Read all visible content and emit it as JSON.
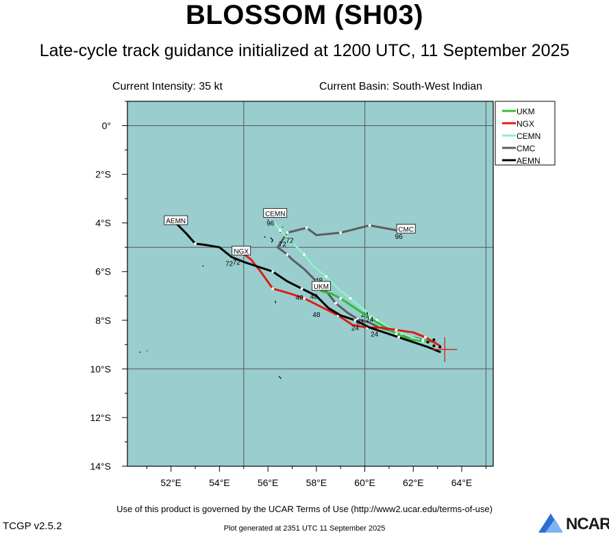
{
  "title": "BLOSSOM (SH03)",
  "subtitle": "Late-cycle track guidance initialized at 1200 UTC, 11 September 2025",
  "info": {
    "intensity": "Current Intensity: 35 kt",
    "basin": "Current Basin: South-West Indian"
  },
  "footer": {
    "terms": "Use of this product is governed by the UCAR Terms of Use (http://www2.ucar.edu/terms-of-use)",
    "version": "TCGP v2.5.2",
    "generated": "Plot generated at 2351 UTC   11 September 2025",
    "logo_text": "NCAR"
  },
  "colors": {
    "ocean": "#99cdce",
    "UKM": "#2fbe35",
    "NGX": "#e01b14",
    "CEMN": "#8fefc8",
    "CMC": "#5c5c5c",
    "AEMN": "#000000"
  },
  "map": {
    "lon_range": [
      50.2,
      65.3
    ],
    "lat_range": [
      -14,
      1
    ],
    "x_ticks": [
      {
        "lon": 52,
        "label": "52°E"
      },
      {
        "lon": 54,
        "label": "54°E"
      },
      {
        "lon": 56,
        "label": "56°E"
      },
      {
        "lon": 58,
        "label": "58°E"
      },
      {
        "lon": 60,
        "label": "60°E"
      },
      {
        "lon": 62,
        "label": "62°E"
      },
      {
        "lon": 64,
        "label": "64°E"
      }
    ],
    "y_ticks": [
      {
        "lat": 0,
        "label": "0°"
      },
      {
        "lat": -2,
        "label": "2°S"
      },
      {
        "lat": -4,
        "label": "4°S"
      },
      {
        "lat": -6,
        "label": "6°S"
      },
      {
        "lat": -8,
        "label": "8°S"
      },
      {
        "lat": -10,
        "label": "10°S"
      },
      {
        "lat": -12,
        "label": "12°S"
      },
      {
        "lat": -14,
        "label": "14°S"
      }
    ],
    "grid_lons": [
      55,
      60,
      65
    ],
    "grid_lats": [
      0,
      -5,
      -10
    ],
    "current_position": {
      "lon": 63.3,
      "lat": -9.2
    }
  },
  "legend": [
    "UKM",
    "NGX",
    "CEMN",
    "CMC",
    "AEMN"
  ],
  "tracks": [
    {
      "name": "CMC",
      "points": [
        [
          62.9,
          -8.9
        ],
        [
          62.4,
          -8.8
        ],
        [
          61.5,
          -8.6
        ],
        [
          61.0,
          -8.4
        ],
        [
          60.6,
          -8.3
        ],
        [
          60.2,
          -8.1
        ],
        [
          59.7,
          -7.95
        ],
        [
          59.3,
          -7.7
        ],
        [
          58.8,
          -7.3
        ],
        [
          58.4,
          -6.8
        ],
        [
          58.0,
          -6.4
        ],
        [
          57.5,
          -5.9
        ],
        [
          57.0,
          -5.5
        ],
        [
          56.8,
          -5.3
        ],
        [
          56.4,
          -5.0
        ],
        [
          56.8,
          -4.4
        ],
        [
          57.6,
          -4.2
        ],
        [
          58.0,
          -4.5
        ],
        [
          59.0,
          -4.4
        ],
        [
          60.2,
          -4.1
        ],
        [
          61.3,
          -4.3
        ]
      ],
      "dots": [
        [
          62.4,
          -8.8
        ],
        [
          61.5,
          -8.6
        ],
        [
          60.6,
          -8.3
        ],
        [
          59.7,
          -7.95
        ],
        [
          58.8,
          -7.3
        ],
        [
          58.0,
          -6.4
        ],
        [
          56.8,
          -5.3
        ],
        [
          56.8,
          -4.4
        ],
        [
          57.6,
          -4.2
        ],
        [
          59.0,
          -4.4
        ],
        [
          60.2,
          -4.1
        ]
      ],
      "hour_labels": [
        {
          "text": "24",
          "lon": 59.8,
          "lat": -8.05
        },
        {
          "text": "72",
          "lon": 56.6,
          "lat": -4.85
        },
        {
          "text": "96",
          "lon": 61.4,
          "lat": -4.55
        }
      ],
      "end_label": {
        "text": "CMC",
        "lon": 61.7,
        "lat": -4.25
      }
    },
    {
      "name": "CEMN",
      "points": [
        [
          62.9,
          -8.9
        ],
        [
          62.2,
          -8.8
        ],
        [
          61.2,
          -8.4
        ],
        [
          60.5,
          -8.0
        ],
        [
          60.0,
          -7.6
        ],
        [
          59.4,
          -7.1
        ],
        [
          58.9,
          -6.7
        ],
        [
          58.4,
          -6.2
        ],
        [
          57.9,
          -5.8
        ],
        [
          57.5,
          -5.3
        ],
        [
          57.0,
          -4.8
        ],
        [
          56.5,
          -4.3
        ],
        [
          56.3,
          -4.0
        ]
      ],
      "dots": [
        [
          62.2,
          -8.8
        ],
        [
          61.2,
          -8.4
        ],
        [
          60.5,
          -8.0
        ],
        [
          59.4,
          -7.1
        ],
        [
          58.4,
          -6.2
        ],
        [
          57.5,
          -5.3
        ],
        [
          56.5,
          -4.3
        ]
      ],
      "hour_labels": [
        {
          "text": "24",
          "lon": 60.0,
          "lat": -7.75
        },
        {
          "text": "48",
          "lon": 58.1,
          "lat": -6.35
        },
        {
          "text": "72",
          "lon": 56.9,
          "lat": -4.7
        },
        {
          "text": "96",
          "lon": 56.1,
          "lat": -4.0
        }
      ],
      "end_label": {
        "text": "CEMN",
        "lon": 56.3,
        "lat": -3.6
      }
    },
    {
      "name": "UKM",
      "points": [
        [
          62.9,
          -8.9
        ],
        [
          62.4,
          -8.85
        ],
        [
          61.9,
          -8.8
        ],
        [
          61.3,
          -8.55
        ],
        [
          60.7,
          -8.2
        ],
        [
          60.2,
          -7.9
        ],
        [
          59.6,
          -7.5
        ],
        [
          59.0,
          -7.1
        ],
        [
          58.6,
          -6.9
        ],
        [
          58.2,
          -6.8
        ]
      ],
      "dots": [
        [
          62.4,
          -8.85
        ],
        [
          61.3,
          -8.55
        ],
        [
          60.2,
          -7.9
        ],
        [
          59.0,
          -7.1
        ]
      ],
      "hour_labels": [
        {
          "text": "24",
          "lon": 60.2,
          "lat": -7.95
        },
        {
          "text": "48",
          "lon": 57.9,
          "lat": -7.0
        }
      ],
      "end_label": {
        "text": "UKM",
        "lon": 58.2,
        "lat": -6.6
      }
    },
    {
      "name": "NGX",
      "points": [
        [
          63.1,
          -9.05
        ],
        [
          62.5,
          -8.7
        ],
        [
          62.0,
          -8.5
        ],
        [
          61.3,
          -8.4
        ],
        [
          60.7,
          -8.3
        ],
        [
          60.1,
          -8.3
        ],
        [
          59.5,
          -8.2
        ],
        [
          58.9,
          -7.8
        ],
        [
          58.3,
          -7.5
        ],
        [
          57.5,
          -7.1
        ],
        [
          56.9,
          -6.9
        ],
        [
          56.2,
          -6.7
        ],
        [
          55.7,
          -6.0
        ],
        [
          55.3,
          -5.5
        ],
        [
          54.9,
          -5.2
        ]
      ],
      "dots": [
        [
          62.5,
          -8.7
        ],
        [
          61.3,
          -8.4
        ],
        [
          60.1,
          -8.3
        ],
        [
          58.9,
          -7.8
        ],
        [
          57.5,
          -7.1
        ],
        [
          56.2,
          -6.7
        ]
      ],
      "hour_labels": [
        {
          "text": "24",
          "lon": 59.6,
          "lat": -8.3
        },
        {
          "text": "48",
          "lon": 58.0,
          "lat": -7.75
        },
        {
          "text": "72",
          "lon": 54.7,
          "lat": -5.6
        }
      ],
      "end_label": {
        "text": "NGX",
        "lon": 54.9,
        "lat": -5.15
      }
    },
    {
      "name": "AEMN",
      "points": [
        [
          63.1,
          -9.3
        ],
        [
          62.6,
          -9.1
        ],
        [
          62.0,
          -8.9
        ],
        [
          61.4,
          -8.7
        ],
        [
          60.8,
          -8.5
        ],
        [
          60.2,
          -8.3
        ],
        [
          59.6,
          -8.0
        ],
        [
          59.0,
          -7.8
        ],
        [
          58.5,
          -7.5
        ],
        [
          58.0,
          -7.0
        ],
        [
          57.4,
          -6.7
        ],
        [
          56.8,
          -6.4
        ],
        [
          56.2,
          -6.0
        ],
        [
          55.6,
          -5.8
        ],
        [
          55.0,
          -5.6
        ],
        [
          54.5,
          -5.4
        ],
        [
          54.0,
          -5.0
        ],
        [
          53.4,
          -4.9
        ],
        [
          53.0,
          -4.85
        ],
        [
          52.6,
          -4.4
        ],
        [
          52.2,
          -4.0
        ]
      ],
      "dots": [
        [
          61.4,
          -8.7
        ],
        [
          59.6,
          -8.0
        ],
        [
          57.4,
          -6.7
        ],
        [
          56.2,
          -6.0
        ],
        [
          53.0,
          -4.85
        ]
      ],
      "hour_labels": [
        {
          "text": "24",
          "lon": 60.4,
          "lat": -8.55
        },
        {
          "text": "48",
          "lon": 57.3,
          "lat": -7.05
        },
        {
          "text": "72",
          "lon": 54.4,
          "lat": -5.65
        }
      ],
      "end_label": {
        "text": "AEMN",
        "lon": 52.2,
        "lat": -3.9
      }
    }
  ],
  "forecast_start_dots": [
    [
      62.6,
      -8.9
    ],
    [
      62.85,
      -8.8
    ],
    [
      62.85,
      -9.05
    ],
    [
      63.1,
      -9.1
    ]
  ],
  "islands": [
    [
      [
        56.3,
        -7.2
      ],
      [
        56.32,
        -7.3
      ]
    ],
    [
      [
        56.45,
        -4.3
      ],
      [
        56.55,
        -4.35
      ],
      [
        56.5,
        -4.4
      ]
    ],
    [
      [
        56.1,
        -4.6
      ],
      [
        56.2,
        -4.7
      ],
      [
        56.15,
        -4.8
      ]
    ],
    [
      [
        56.45,
        -10.3
      ],
      [
        56.55,
        -10.4
      ]
    ],
    [
      [
        53.3,
        -5.75
      ],
      [
        53.35,
        -5.78
      ]
    ],
    [
      [
        55.85,
        -4.55
      ],
      [
        55.9,
        -4.6
      ]
    ],
    [
      [
        50.7,
        -9.3
      ],
      [
        50.75,
        -9.32
      ]
    ],
    [
      [
        51.0,
        -9.25
      ],
      [
        51.02,
        -9.27
      ]
    ],
    [
      [
        56.0,
        -3.85
      ],
      [
        56.02,
        -3.88
      ]
    ],
    [
      [
        56.6,
        -4.15
      ],
      [
        56.62,
        -4.18
      ]
    ]
  ]
}
